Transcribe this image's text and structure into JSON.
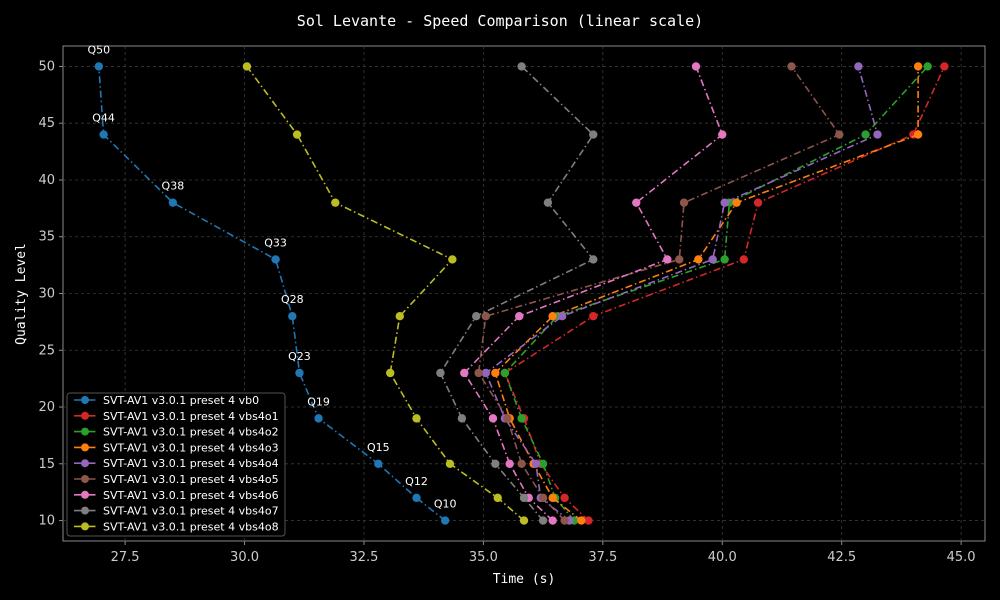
{
  "chart_data": {
    "type": "line",
    "title": "Sol Levante - Speed Comparison (linear scale)",
    "xlabel": "Time (s)",
    "ylabel": "Quality Level",
    "xlim": [
      26.2,
      45.5
    ],
    "ylim": [
      8.2,
      51.8
    ],
    "xticks": [
      "27.5",
      "30.0",
      "32.5",
      "35.0",
      "37.5",
      "40.0",
      "42.5",
      "45.0"
    ],
    "yticks": [
      "10",
      "15",
      "20",
      "25",
      "30",
      "35",
      "40",
      "45",
      "50"
    ],
    "grid": true,
    "legend_position": "lower-left",
    "quality_levels": [
      10,
      12,
      15,
      19,
      23,
      28,
      33,
      38,
      44,
      50
    ],
    "annotations": [
      "Q10",
      "Q12",
      "Q15",
      "Q19",
      "Q23",
      "Q28",
      "Q33",
      "Q38",
      "Q44",
      "Q50"
    ],
    "series": [
      {
        "name": "SVT-AV1 v3.0.1 preset 4 vb0",
        "color": "#1f77b4",
        "x": [
          34.2,
          33.6,
          32.8,
          31.55,
          31.15,
          31.0,
          30.65,
          28.5,
          27.05,
          26.95
        ]
      },
      {
        "name": "SVT-AV1 v3.0.1 preset 4 vbs4o1",
        "color": "#d62728",
        "x": [
          37.2,
          36.7,
          36.2,
          35.85,
          35.45,
          37.3,
          40.45,
          40.75,
          44.0,
          44.65
        ]
      },
      {
        "name": "SVT-AV1 v3.0.1 preset 4 vbs4o2",
        "color": "#2ca02c",
        "x": [
          36.9,
          36.5,
          36.25,
          35.8,
          35.45,
          36.55,
          40.05,
          40.15,
          43.0,
          44.3
        ]
      },
      {
        "name": "SVT-AV1 v3.0.1 preset 4 vbs4o3",
        "color": "#ff7f0e",
        "x": [
          37.05,
          36.45,
          36.05,
          35.55,
          35.25,
          36.45,
          39.5,
          40.3,
          44.1,
          44.1
        ]
      },
      {
        "name": "SVT-AV1 v3.0.1 preset 4 vbs4o4",
        "color": "#9467bd",
        "x": [
          36.8,
          36.2,
          36.1,
          35.45,
          35.05,
          36.65,
          39.8,
          40.05,
          43.25,
          42.85
        ]
      },
      {
        "name": "SVT-AV1 v3.0.1 preset 4 vbs4o5",
        "color": "#8c564b",
        "x": [
          36.7,
          36.25,
          35.8,
          35.5,
          34.9,
          35.05,
          39.1,
          39.2,
          42.45,
          41.45
        ]
      },
      {
        "name": "SVT-AV1 v3.0.1 preset 4 vbs4o6",
        "color": "#e377c2",
        "x": [
          36.45,
          35.95,
          35.55,
          35.2,
          34.6,
          35.75,
          38.85,
          38.2,
          40.0,
          39.45
        ]
      },
      {
        "name": "SVT-AV1 v3.0.1 preset 4 vbs4o7",
        "color": "#7f7f7f",
        "x": [
          36.25,
          35.85,
          35.25,
          34.55,
          34.1,
          34.85,
          37.3,
          36.35,
          37.3,
          35.8
        ]
      },
      {
        "name": "SVT-AV1 v3.0.1 preset 4 vbs4o8",
        "color": "#bcbd22",
        "x": [
          35.85,
          35.3,
          34.3,
          33.6,
          33.05,
          33.25,
          34.35,
          31.9,
          31.1,
          30.05
        ]
      }
    ]
  }
}
